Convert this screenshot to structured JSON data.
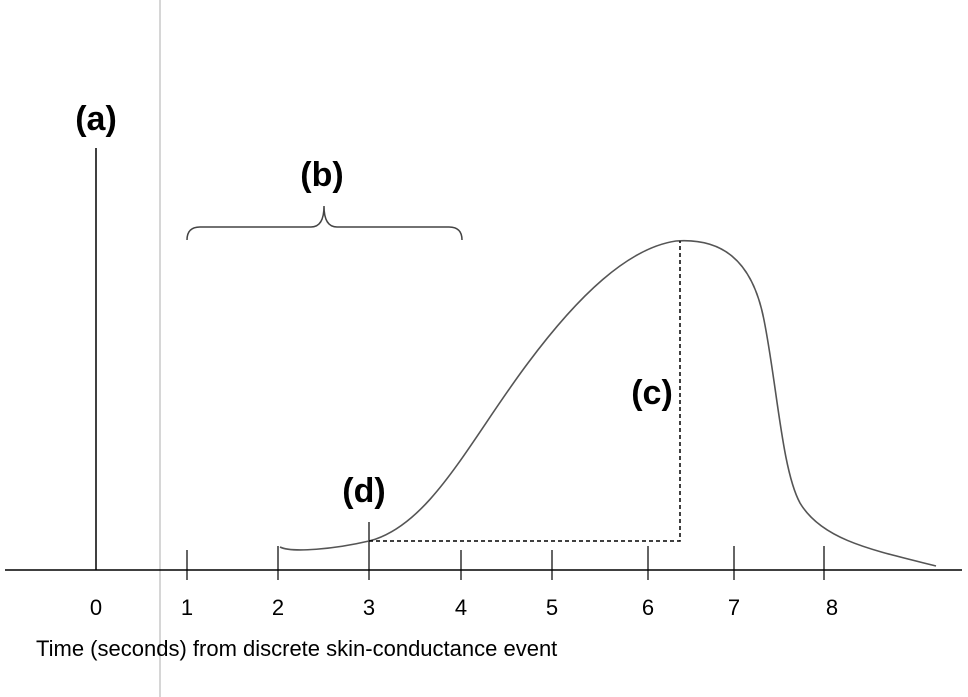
{
  "diagram": {
    "axis_title": "Time (seconds) from discrete skin-conductance event",
    "ticks": [
      {
        "value": 0,
        "label": "0"
      },
      {
        "value": 1,
        "label": "1"
      },
      {
        "value": 2,
        "label": "2"
      },
      {
        "value": 3,
        "label": "3"
      },
      {
        "value": 4,
        "label": "4"
      },
      {
        "value": 5,
        "label": "5"
      },
      {
        "value": 6,
        "label": "6"
      },
      {
        "value": 7,
        "label": "7"
      },
      {
        "value": 8,
        "label": "8"
      }
    ],
    "labels": {
      "a": "(a)",
      "b": "(b)",
      "c": "(c)",
      "d": "(d)"
    },
    "colors": {
      "axis": "#000000",
      "curve": "#555555",
      "divider": "#c8c8c8"
    }
  }
}
